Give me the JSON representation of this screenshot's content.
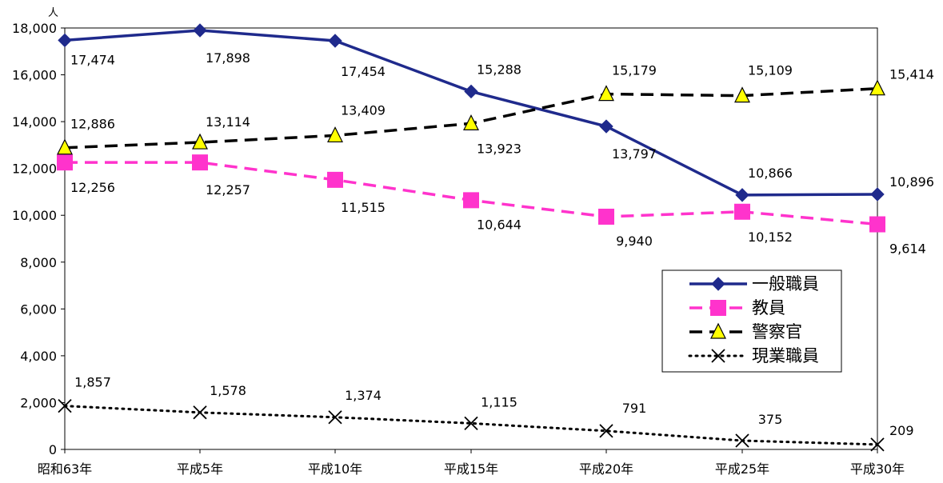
{
  "chart_data": {
    "type": "line",
    "unit": "人",
    "categories": [
      "昭和63年",
      "平成5年",
      "平成10年",
      "平成15年",
      "平成20年",
      "平成25年",
      "平成30年"
    ],
    "ylim": [
      0,
      18000
    ],
    "yticks": [
      "0",
      "2,000",
      "4,000",
      "6,000",
      "8,000",
      "10,000",
      "12,000",
      "14,000",
      "16,000",
      "18,000"
    ],
    "grid": false,
    "legend_position": "right-middle",
    "series": [
      {
        "name": "一般職員",
        "values": [
          17474,
          17898,
          17454,
          15288,
          13797,
          10866,
          10896
        ],
        "labels": [
          "17,474",
          "17,898",
          "17,454",
          "15,288",
          "13,797",
          "10,866",
          "10,896"
        ],
        "color": "#1f2a8c",
        "line_style": "solid",
        "marker": "diamond"
      },
      {
        "name": "教員",
        "values": [
          12256,
          12257,
          11515,
          10644,
          9940,
          10152,
          9614
        ],
        "labels": [
          "12,256",
          "12,257",
          "11,515",
          "10,644",
          "9,940",
          "10,152",
          "9,614"
        ],
        "color": "#ff33cc",
        "line_style": "dashed",
        "marker": "square"
      },
      {
        "name": "警察官",
        "values": [
          12886,
          13114,
          13409,
          13923,
          15179,
          15109,
          15414
        ],
        "labels": [
          "12,886",
          "13,114",
          "13,409",
          "13,923",
          "15,179",
          "15,109",
          "15,414"
        ],
        "color": "#000000",
        "marker_fill": "#ffff00",
        "line_style": "dashed",
        "marker": "triangle"
      },
      {
        "name": "現業職員",
        "values": [
          1857,
          1578,
          1374,
          1115,
          791,
          375,
          209
        ],
        "labels": [
          "1,857",
          "1,578",
          "1,374",
          "1,115",
          "791",
          "375",
          "209"
        ],
        "color": "#000000",
        "line_style": "dotted",
        "marker": "x"
      }
    ]
  }
}
